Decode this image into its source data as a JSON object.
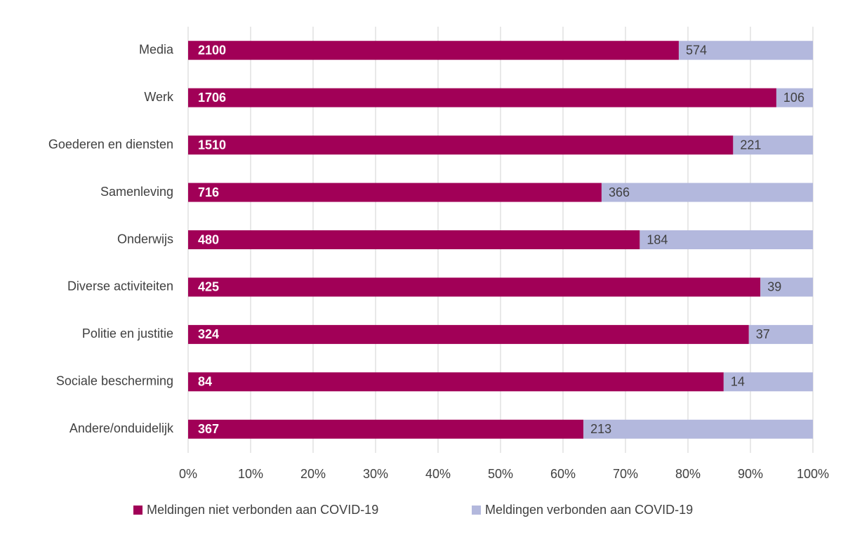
{
  "chart_data": {
    "type": "bar",
    "orientation": "horizontal",
    "stacking": "percent",
    "categories": [
      "Media",
      "Werk",
      "Goederen en diensten",
      "Samenleving",
      "Onderwijs",
      "Diverse activiteiten",
      "Politie en justitie",
      "Sociale bescherming",
      "Andere/onduidelijk"
    ],
    "series": [
      {
        "name": "Meldingen niet verbonden aan COVID-19",
        "color": "#a10057",
        "values": [
          2100,
          1706,
          1510,
          716,
          480,
          425,
          324,
          84,
          367
        ]
      },
      {
        "name": "Meldingen verbonden aan COVID-19",
        "color": "#b3b8dd",
        "values": [
          574,
          106,
          221,
          366,
          184,
          39,
          37,
          14,
          213
        ]
      }
    ],
    "xlim": [
      0,
      100
    ],
    "xticks": [
      {
        "value": 0,
        "label": "0%"
      },
      {
        "value": 10,
        "label": "10%"
      },
      {
        "value": 20,
        "label": "20%"
      },
      {
        "value": 30,
        "label": "30%"
      },
      {
        "value": 40,
        "label": "40%"
      },
      {
        "value": 50,
        "label": "50%"
      },
      {
        "value": 60,
        "label": "60%"
      },
      {
        "value": 70,
        "label": "70%"
      },
      {
        "value": 80,
        "label": "80%"
      },
      {
        "value": 90,
        "label": "90%"
      },
      {
        "value": 100,
        "label": "100%"
      }
    ],
    "grid": true,
    "legend": "bottom"
  }
}
